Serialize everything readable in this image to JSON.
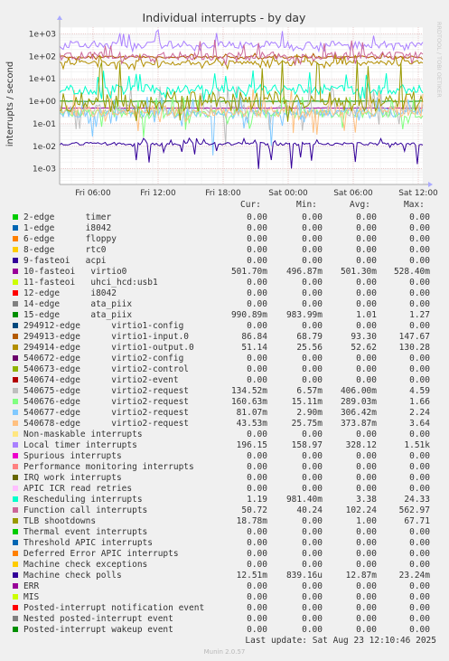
{
  "chart_data": {
    "type": "line",
    "title": "Individual interrupts - by day",
    "ylabel": "interrupts / second",
    "yscale": "log",
    "ylim": [
      0.0002,
      2000
    ],
    "y_ticks": [
      "1e-03",
      "1e-02",
      "1e-01",
      "1e+00",
      "1e+01",
      "1e+02",
      "1e+03"
    ],
    "x_ticks": [
      "Fri 06:00",
      "Fri 12:00",
      "Fri 18:00",
      "Sat 00:00",
      "Sat 06:00",
      "Sat 12:00"
    ],
    "watermark": "RRDTOOL / TOBI OETIKER",
    "columns": [
      "Cur:",
      "Min:",
      "Avg:",
      "Max:"
    ],
    "series": [
      {
        "name": "2-edge      timer",
        "color": "#00cc00",
        "cur": "0.00",
        "min": "0.00",
        "avg": "0.00",
        "max": "0.00"
      },
      {
        "name": "1-edge      i8042",
        "color": "#0066b3",
        "cur": "0.00",
        "min": "0.00",
        "avg": "0.00",
        "max": "0.00"
      },
      {
        "name": "6-edge      floppy",
        "color": "#ff8000",
        "cur": "0.00",
        "min": "0.00",
        "avg": "0.00",
        "max": "0.00"
      },
      {
        "name": "8-edge      rtc0",
        "color": "#ffcc00",
        "cur": "0.00",
        "min": "0.00",
        "avg": "0.00",
        "max": "0.00"
      },
      {
        "name": "9-fasteoi   acpi",
        "color": "#330099",
        "cur": "0.00",
        "min": "0.00",
        "avg": "0.00",
        "max": "0.00"
      },
      {
        "name": "10-fasteoi   virtio0",
        "color": "#990099",
        "cur": "501.70m",
        "min": "496.87m",
        "avg": "501.30m",
        "max": "528.40m"
      },
      {
        "name": "11-fasteoi   uhci_hcd:usb1",
        "color": "#ccff00",
        "cur": "0.00",
        "min": "0.00",
        "avg": "0.00",
        "max": "0.00"
      },
      {
        "name": "12-edge      i8042",
        "color": "#ff0000",
        "cur": "0.00",
        "min": "0.00",
        "avg": "0.00",
        "max": "0.00"
      },
      {
        "name": "14-edge      ata_piix",
        "color": "#808080",
        "cur": "0.00",
        "min": "0.00",
        "avg": "0.00",
        "max": "0.00"
      },
      {
        "name": "15-edge      ata_piix",
        "color": "#008f00",
        "cur": "990.89m",
        "min": "983.99m",
        "avg": "1.01",
        "max": "1.27"
      },
      {
        "name": "294912-edge      virtio1-config",
        "color": "#00487d",
        "cur": "0.00",
        "min": "0.00",
        "avg": "0.00",
        "max": "0.00"
      },
      {
        "name": "294913-edge      virtio1-input.0",
        "color": "#b35a00",
        "cur": "86.84",
        "min": "68.79",
        "avg": "93.30",
        "max": "147.67"
      },
      {
        "name": "294914-edge      virtio1-output.0",
        "color": "#b38f00",
        "cur": "51.14",
        "min": "25.56",
        "avg": "52.62",
        "max": "130.28"
      },
      {
        "name": "540672-edge      virtio2-config",
        "color": "#6b006b",
        "cur": "0.00",
        "min": "0.00",
        "avg": "0.00",
        "max": "0.00"
      },
      {
        "name": "540673-edge      virtio2-control",
        "color": "#8fb300",
        "cur": "0.00",
        "min": "0.00",
        "avg": "0.00",
        "max": "0.00"
      },
      {
        "name": "540674-edge      virtio2-event",
        "color": "#b30000",
        "cur": "0.00",
        "min": "0.00",
        "avg": "0.00",
        "max": "0.00"
      },
      {
        "name": "540675-edge      virtio2-request",
        "color": "#bebebe",
        "cur": "134.52m",
        "min": "6.57m",
        "avg": "406.00m",
        "max": "4.59"
      },
      {
        "name": "540676-edge      virtio2-request",
        "color": "#80ff80",
        "cur": "160.63m",
        "min": "15.11m",
        "avg": "289.03m",
        "max": "1.66"
      },
      {
        "name": "540677-edge      virtio2-request",
        "color": "#80c9ff",
        "cur": "81.07m",
        "min": "2.90m",
        "avg": "306.42m",
        "max": "2.24"
      },
      {
        "name": "540678-edge      virtio2-request",
        "color": "#ffc080",
        "cur": "43.53m",
        "min": "25.75m",
        "avg": "373.87m",
        "max": "3.64"
      },
      {
        "name": "Non-maskable interrupts",
        "color": "#ffe680",
        "cur": "0.00",
        "min": "0.00",
        "avg": "0.00",
        "max": "0.00"
      },
      {
        "name": "Local timer interrupts",
        "color": "#aa80ff",
        "cur": "196.15",
        "min": "158.97",
        "avg": "328.12",
        "max": "1.51k"
      },
      {
        "name": "Spurious interrupts",
        "color": "#ee00cc",
        "cur": "0.00",
        "min": "0.00",
        "avg": "0.00",
        "max": "0.00"
      },
      {
        "name": "Performance monitoring interrupts",
        "color": "#ff8080",
        "cur": "0.00",
        "min": "0.00",
        "avg": "0.00",
        "max": "0.00"
      },
      {
        "name": "IRQ work interrupts",
        "color": "#666600",
        "cur": "0.00",
        "min": "0.00",
        "avg": "0.00",
        "max": "0.00"
      },
      {
        "name": "APIC ICR read retries",
        "color": "#ffbfff",
        "cur": "0.00",
        "min": "0.00",
        "avg": "0.00",
        "max": "0.00"
      },
      {
        "name": "Rescheduling interrupts",
        "color": "#00ffcc",
        "cur": "1.19",
        "min": "981.40m",
        "avg": "3.38",
        "max": "24.33"
      },
      {
        "name": "Function call interrupts",
        "color": "#cc6699",
        "cur": "50.72",
        "min": "40.24",
        "avg": "102.24",
        "max": "562.97"
      },
      {
        "name": "TLB shootdowns",
        "color": "#999900",
        "cur": "18.78m",
        "min": "0.00",
        "avg": "1.00",
        "max": "67.71"
      },
      {
        "name": "Thermal event interrupts",
        "color": "#00cc00",
        "cur": "0.00",
        "min": "0.00",
        "avg": "0.00",
        "max": "0.00"
      },
      {
        "name": "Threshold APIC interrupts",
        "color": "#0066b3",
        "cur": "0.00",
        "min": "0.00",
        "avg": "0.00",
        "max": "0.00"
      },
      {
        "name": "Deferred Error APIC interrupts",
        "color": "#ff8000",
        "cur": "0.00",
        "min": "0.00",
        "avg": "0.00",
        "max": "0.00"
      },
      {
        "name": "Machine check exceptions",
        "color": "#ffcc00",
        "cur": "0.00",
        "min": "0.00",
        "avg": "0.00",
        "max": "0.00"
      },
      {
        "name": "Machine check polls",
        "color": "#330099",
        "cur": "12.51m",
        "min": "839.16u",
        "avg": "12.87m",
        "max": "23.24m"
      },
      {
        "name": "ERR",
        "color": "#990099",
        "cur": "0.00",
        "min": "0.00",
        "avg": "0.00",
        "max": "0.00"
      },
      {
        "name": "MIS",
        "color": "#ccff00",
        "cur": "0.00",
        "min": "0.00",
        "avg": "0.00",
        "max": "0.00"
      },
      {
        "name": "Posted-interrupt notification event",
        "color": "#ff0000",
        "cur": "0.00",
        "min": "0.00",
        "avg": "0.00",
        "max": "0.00"
      },
      {
        "name": "Nested posted-interrupt event",
        "color": "#808080",
        "cur": "0.00",
        "min": "0.00",
        "avg": "0.00",
        "max": "0.00"
      },
      {
        "name": "Posted-interrupt wakeup event",
        "color": "#008f00",
        "cur": "0.00",
        "min": "0.00",
        "avg": "0.00",
        "max": "0.00"
      }
    ]
  },
  "footer": {
    "last_update": "Last update: Sat Aug 23 12:10:46 2025",
    "munin_version": "Munin 2.0.57"
  }
}
